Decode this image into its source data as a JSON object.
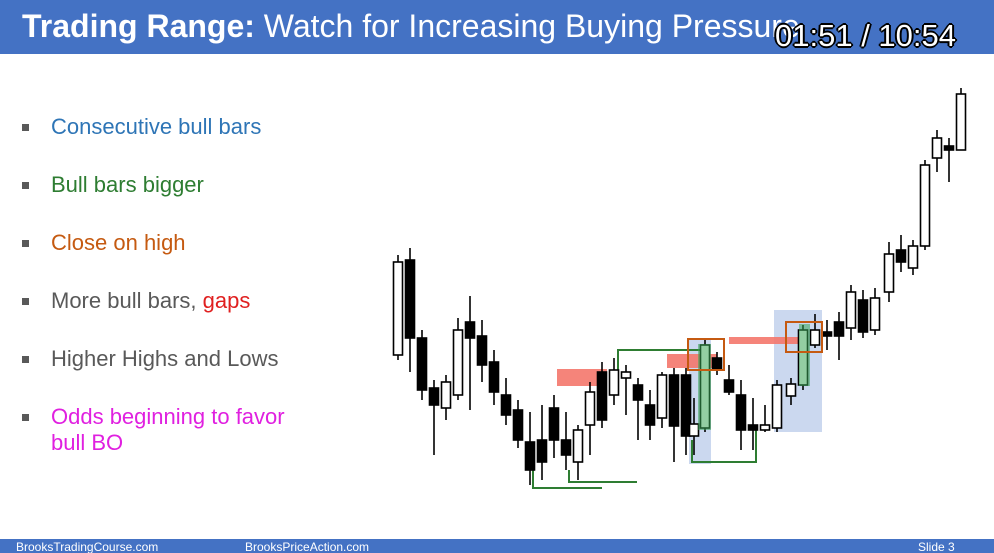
{
  "header": {
    "title_bold": "Trading Range:",
    "title_rest": " Watch for Increasing Buying Pressure",
    "timecode": "01:51 / 10:54",
    "bg_color": "#4472c4"
  },
  "bullets": [
    {
      "text": "Consecutive bull bars",
      "color": "#2e75b6"
    },
    {
      "text": "Bull bars bigger",
      "color": "#2e7d32"
    },
    {
      "text": "Close on high",
      "color": "#c55a11"
    },
    {
      "text": "More bull bars, ",
      "extra": "gaps",
      "color": "#595959",
      "extra_color": "#e02020"
    },
    {
      "text": "Higher Highs and Lows",
      "color": "#595959"
    },
    {
      "text": "Odds beginning to favor",
      "text2": "bull BO",
      "color": "#e020e0"
    }
  ],
  "footer": {
    "left": "BrooksTradingCourse.com",
    "center": "BrooksPriceAction.com",
    "right": "Slide  3"
  }
}
